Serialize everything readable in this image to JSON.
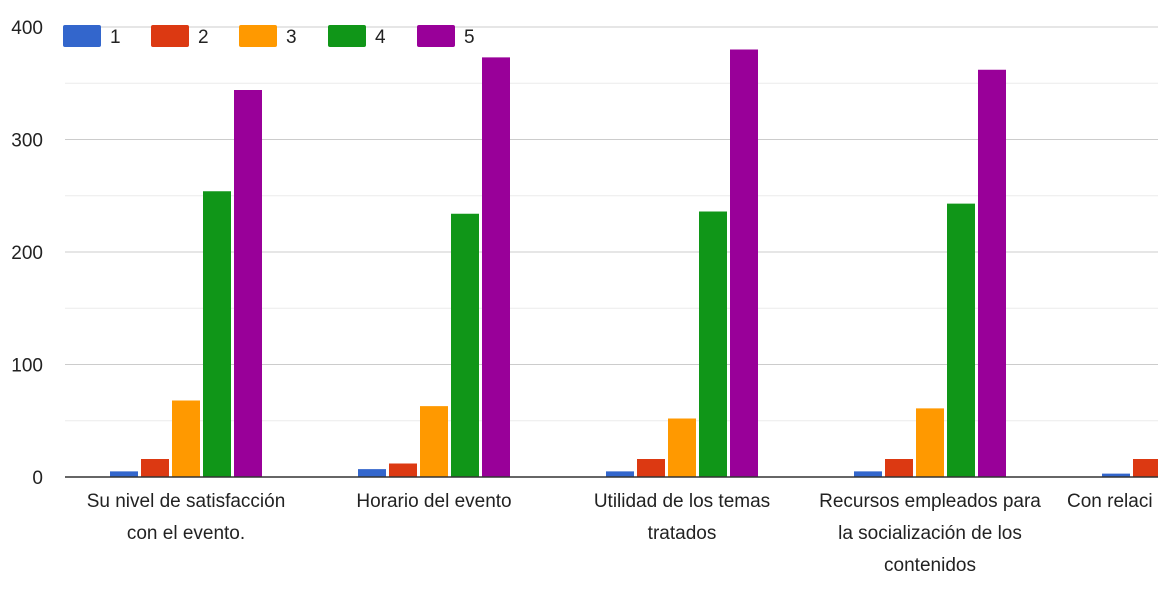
{
  "chart_data": {
    "type": "bar",
    "categories": [
      [
        "Su nivel de satisfacción",
        "con el evento."
      ],
      [
        "Horario del evento"
      ],
      [
        "Utilidad de los temas",
        "tratados"
      ],
      [
        "Recursos empleados para",
        "la socialización de los",
        "contenidos"
      ],
      [
        "Con relaci"
      ]
    ],
    "series": [
      {
        "name": "1",
        "color": "#3366cc",
        "values": [
          5,
          7,
          5,
          5,
          3
        ]
      },
      {
        "name": "2",
        "color": "#dc3912",
        "values": [
          16,
          12,
          16,
          16,
          16
        ]
      },
      {
        "name": "3",
        "color": "#ff9900",
        "values": [
          68,
          63,
          52,
          61,
          null
        ]
      },
      {
        "name": "4",
        "color": "#109618",
        "values": [
          254,
          234,
          236,
          243,
          null
        ]
      },
      {
        "name": "5",
        "color": "#990099",
        "values": [
          344,
          373,
          380,
          362,
          null
        ]
      }
    ],
    "yticks": [
      0,
      100,
      200,
      300,
      400
    ],
    "ylim": [
      0,
      400
    ],
    "grid": true,
    "legend": "top"
  }
}
